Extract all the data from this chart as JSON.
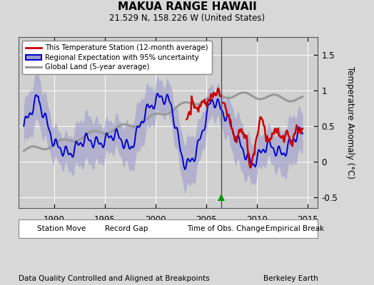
{
  "title": "MAKUA RANGE HAWAII",
  "subtitle": "21.529 N, 158.226 W (United States)",
  "ylabel": "Temperature Anomaly (°C)",
  "xlabel_note": "Data Quality Controlled and Aligned at Breakpoints",
  "credit": "Berkeley Earth",
  "xlim": [
    1986.5,
    2016.0
  ],
  "ylim": [
    -0.65,
    1.75
  ],
  "yticks": [
    -0.5,
    0,
    0.5,
    1,
    1.5
  ],
  "xticks": [
    1990,
    1995,
    2000,
    2005,
    2010,
    2015
  ],
  "bg_color": "#d8d8d8",
  "plot_bg": "#d0d0d0",
  "grid_color": "#ffffff",
  "vertical_line_x": 2006.5,
  "triangle_x": 2006.5,
  "triangle_y": -0.5,
  "red_line_color": "#cc0000",
  "blue_line_color": "#0000cc",
  "blue_fill_color": "#9999cc",
  "gray_line_color": "#999999",
  "legend1_label": "This Temperature Station (12-month average)",
  "legend2_label": "Regional Expectation with 95% uncertainty",
  "legend3_label": "Global Land (5-year average)",
  "bottom_legend": [
    {
      "marker": "D",
      "color": "#cc0000",
      "label": "Station Move"
    },
    {
      "marker": "^",
      "color": "#009900",
      "label": "Record Gap"
    },
    {
      "marker": "v",
      "color": "#0000cc",
      "label": "Time of Obs. Change"
    },
    {
      "marker": "s",
      "color": "#333333",
      "label": "Empirical Break"
    }
  ]
}
